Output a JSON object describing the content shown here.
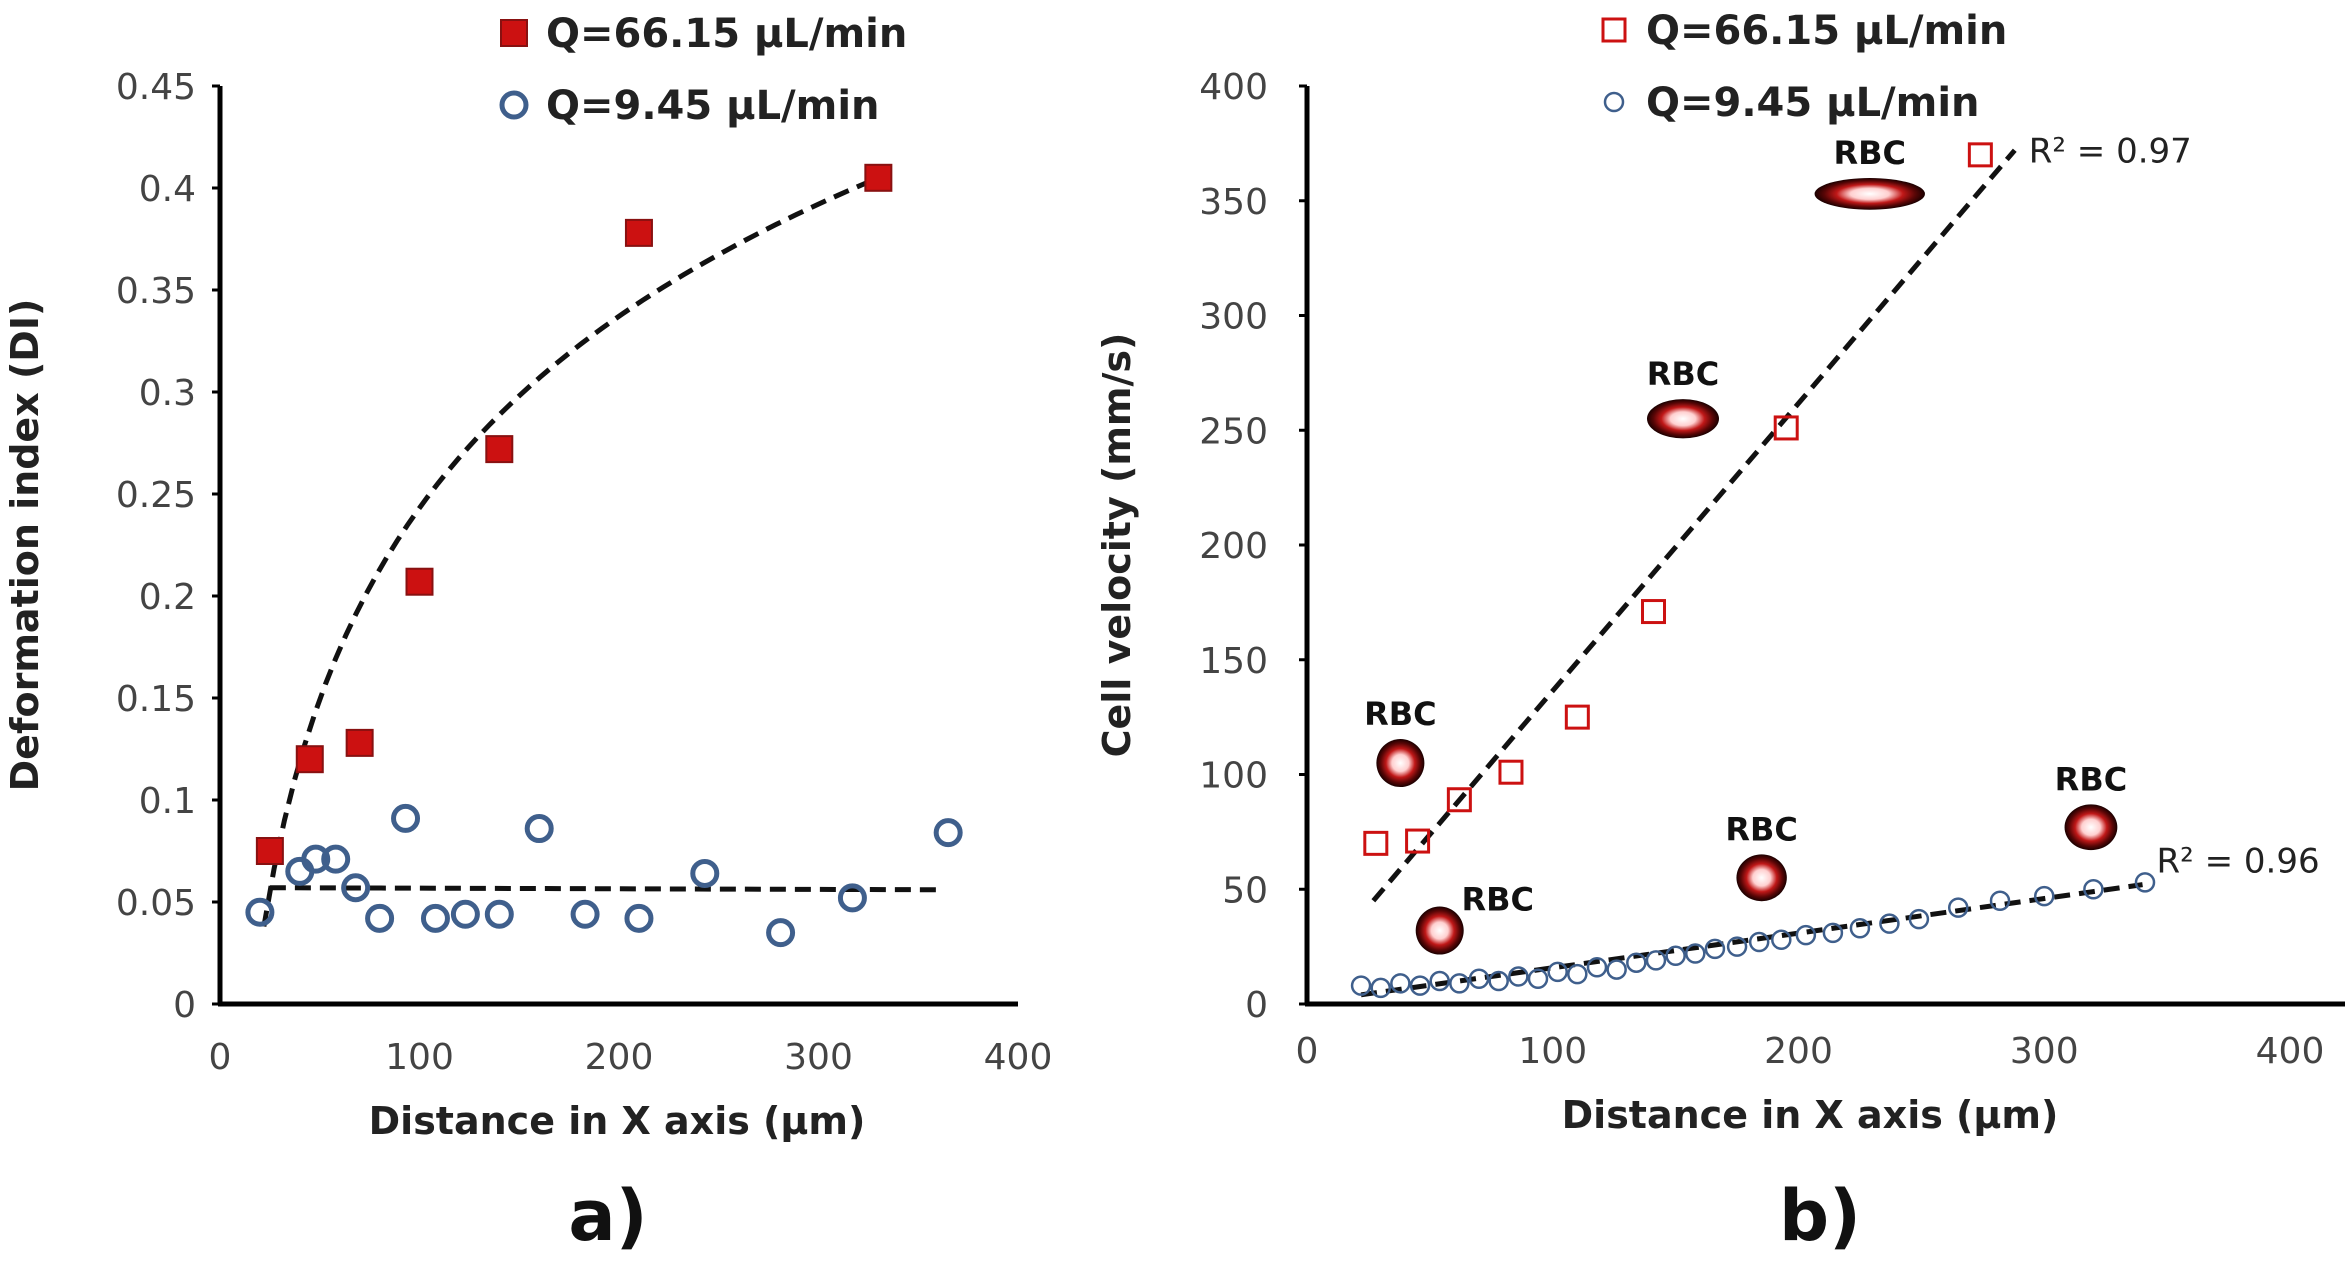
{
  "colors": {
    "red_fill": "#cc1111",
    "red_stroke": "#881111",
    "blue_stroke": "#3f5f8c",
    "fit_line": "#111111",
    "axis": "#000000"
  },
  "chart_data": [
    {
      "id": "a",
      "type": "scatter",
      "panel_label": "a)",
      "xlabel": "Distance in X axis (μm)",
      "ylabel": "Deformation index (DI)",
      "xlim": [
        0,
        400
      ],
      "ylim": [
        0,
        0.45
      ],
      "xticks": [
        "0",
        "100",
        "200",
        "300",
        "400"
      ],
      "yticks": [
        "0",
        "0.05",
        "0.1",
        "0.15",
        "0.2",
        "0.25",
        "0.3",
        "0.35",
        "0.4",
        "0.45"
      ],
      "legend": {
        "position": "top"
      },
      "series": [
        {
          "name": "Q=66.15 μL/min",
          "marker": "filled-square",
          "x": [
            25,
            45,
            70,
            100,
            140,
            210,
            330
          ],
          "y": [
            0.075,
            0.12,
            0.128,
            0.207,
            0.272,
            0.378,
            0.405
          ],
          "fit": {
            "kind": "log",
            "x": [
              22,
              330
            ],
            "y": [
              0.038,
              0.405
            ]
          }
        },
        {
          "name": "Q=9.45 μL/min",
          "marker": "open-circle",
          "x": [
            20,
            40,
            48,
            58,
            68,
            80,
            93,
            108,
            123,
            140,
            160,
            183,
            210,
            243,
            281,
            317,
            365
          ],
          "y": [
            0.045,
            0.065,
            0.071,
            0.071,
            0.057,
            0.042,
            0.091,
            0.042,
            0.044,
            0.044,
            0.086,
            0.044,
            0.042,
            0.064,
            0.035,
            0.052,
            0.084
          ],
          "fit": {
            "kind": "linear",
            "x": [
              25,
              360
            ],
            "y": [
              0.057,
              0.056
            ]
          }
        }
      ]
    },
    {
      "id": "b",
      "type": "scatter",
      "panel_label": "b)",
      "xlabel": "Distance in X axis (μm)",
      "ylabel": "Cell velocity (mm/s)",
      "xlim": [
        0,
        400
      ],
      "ylim": [
        0,
        400
      ],
      "xticks": [
        "0",
        "100",
        "200",
        "300",
        "400"
      ],
      "yticks": [
        "0",
        "50",
        "100",
        "150",
        "200",
        "250",
        "300",
        "350",
        "400"
      ],
      "legend": {
        "position": "top"
      },
      "series": [
        {
          "name": "Q=66.15 μL/min",
          "marker": "open-square",
          "x": [
            28,
            45,
            62,
            83,
            110,
            141,
            195,
            274
          ],
          "y": [
            70,
            71,
            89,
            101,
            125,
            171,
            251,
            370
          ],
          "fit": {
            "kind": "linear",
            "x": [
              27,
              288
            ],
            "y": [
              45,
              372
            ]
          },
          "r2": "R² = 0.97"
        },
        {
          "name": "Q=9.45 μL/min",
          "marker": "small-open-circle",
          "x": [
            22,
            30,
            38,
            46,
            54,
            62,
            70,
            78,
            86,
            94,
            102,
            110,
            118,
            126,
            134,
            142,
            150,
            158,
            166,
            175,
            184,
            193,
            203,
            214,
            225,
            237,
            249,
            265,
            282,
            300,
            320,
            341
          ],
          "y": [
            8,
            7,
            9,
            8,
            10,
            9,
            11,
            10,
            12,
            11,
            14,
            13,
            16,
            15,
            18,
            19,
            21,
            22,
            24,
            25,
            27,
            28,
            30,
            31,
            33,
            35,
            37,
            42,
            45,
            47,
            50,
            53
          ],
          "fit": {
            "kind": "linear",
            "x": [
              22,
              340
            ],
            "y": [
              4,
              52
            ]
          },
          "r2": "R² = 0.96"
        }
      ],
      "annotations": [
        {
          "text": "RBC",
          "x": 38,
          "y": 105,
          "cell_stretch": 1.0
        },
        {
          "text": "RBC",
          "x": 54,
          "y": 32,
          "cell_stretch": 1.0
        },
        {
          "text": "RBC",
          "x": 153,
          "y": 255,
          "cell_stretch": 1.5
        },
        {
          "text": "RBC",
          "x": 229,
          "y": 353,
          "cell_stretch": 2.3
        },
        {
          "text": "RBC",
          "x": 185,
          "y": 55,
          "cell_stretch": 1.05
        },
        {
          "text": "RBC",
          "x": 319,
          "y": 77,
          "cell_stretch": 1.1
        }
      ]
    }
  ]
}
